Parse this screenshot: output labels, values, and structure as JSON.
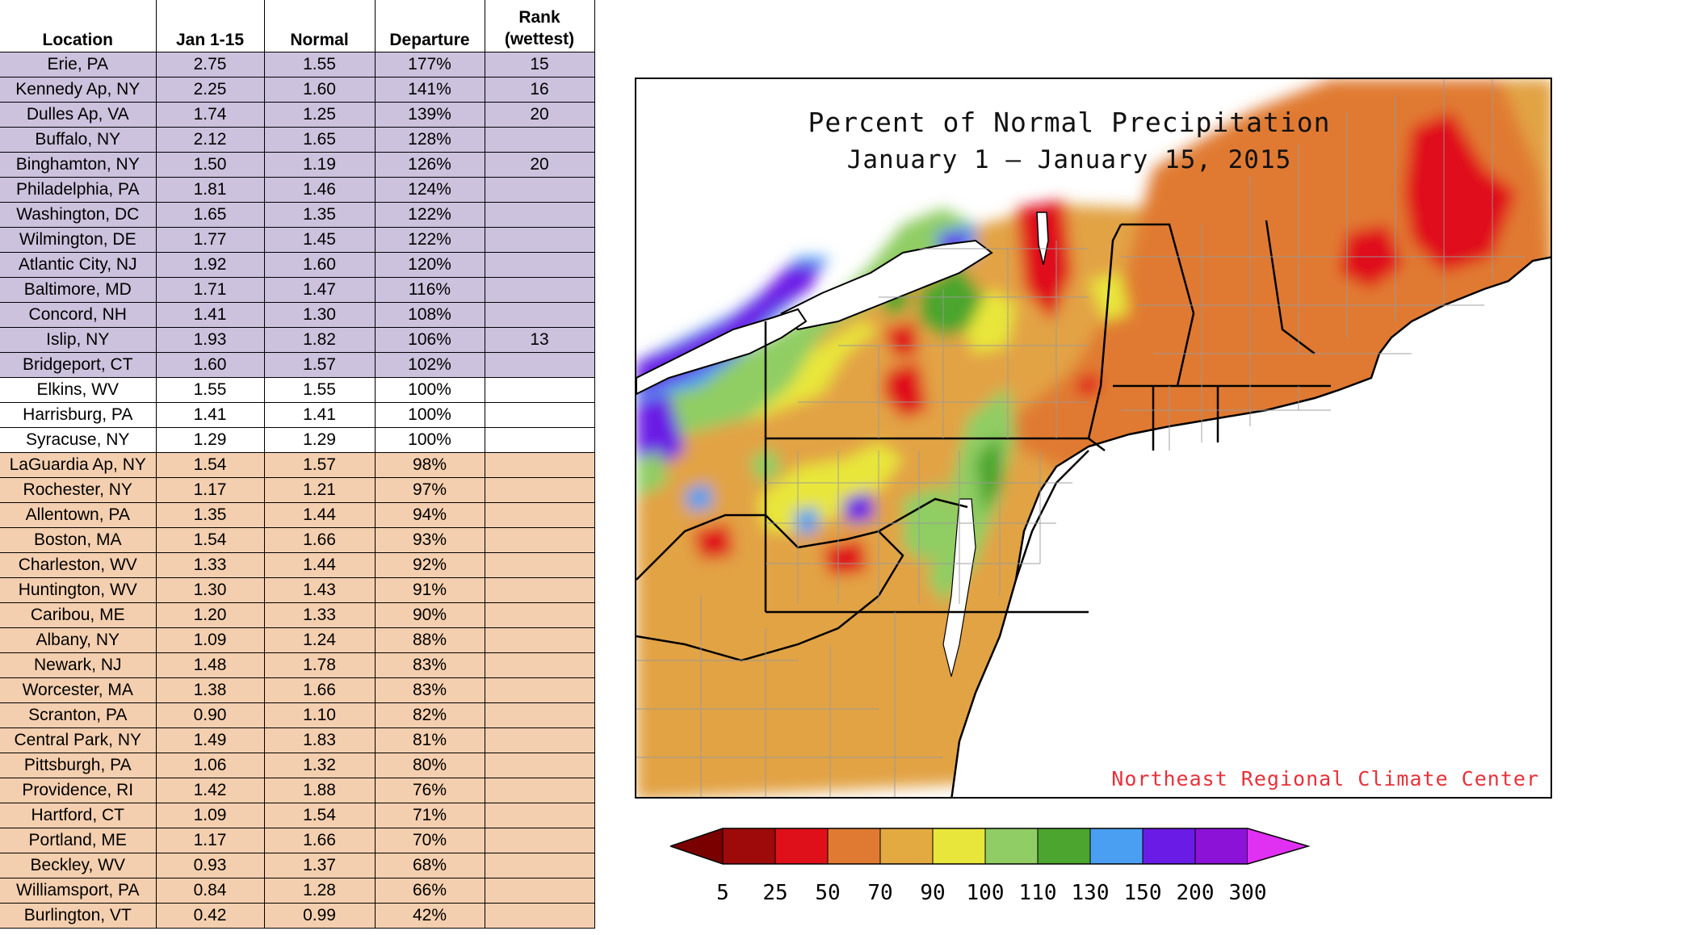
{
  "table": {
    "headers": {
      "location": "Location",
      "jan": "Jan 1-15",
      "normal": "Normal",
      "departure": "Departure",
      "rank_line1": "Rank",
      "rank_line2": "(wettest)"
    },
    "rows": [
      {
        "location": "Erie, PA",
        "jan": "2.75",
        "normal": "1.55",
        "departure": "177%",
        "rank": "15",
        "group": "above"
      },
      {
        "location": "Kennedy Ap, NY",
        "jan": "2.25",
        "normal": "1.60",
        "departure": "141%",
        "rank": "16",
        "group": "above"
      },
      {
        "location": "Dulles Ap, VA",
        "jan": "1.74",
        "normal": "1.25",
        "departure": "139%",
        "rank": "20",
        "group": "above"
      },
      {
        "location": "Buffalo, NY",
        "jan": "2.12",
        "normal": "1.65",
        "departure": "128%",
        "rank": "",
        "group": "above"
      },
      {
        "location": "Binghamton, NY",
        "jan": "1.50",
        "normal": "1.19",
        "departure": "126%",
        "rank": "20",
        "group": "above"
      },
      {
        "location": "Philadelphia, PA",
        "jan": "1.81",
        "normal": "1.46",
        "departure": "124%",
        "rank": "",
        "group": "above"
      },
      {
        "location": "Washington, DC",
        "jan": "1.65",
        "normal": "1.35",
        "departure": "122%",
        "rank": "",
        "group": "above"
      },
      {
        "location": "Wilmington, DE",
        "jan": "1.77",
        "normal": "1.45",
        "departure": "122%",
        "rank": "",
        "group": "above"
      },
      {
        "location": "Atlantic City, NJ",
        "jan": "1.92",
        "normal": "1.60",
        "departure": "120%",
        "rank": "",
        "group": "above"
      },
      {
        "location": "Baltimore, MD",
        "jan": "1.71",
        "normal": "1.47",
        "departure": "116%",
        "rank": "",
        "group": "above"
      },
      {
        "location": "Concord, NH",
        "jan": "1.41",
        "normal": "1.30",
        "departure": "108%",
        "rank": "",
        "group": "above"
      },
      {
        "location": "Islip, NY",
        "jan": "1.93",
        "normal": "1.82",
        "departure": "106%",
        "rank": "13",
        "group": "above"
      },
      {
        "location": "Bridgeport, CT",
        "jan": "1.60",
        "normal": "1.57",
        "departure": "102%",
        "rank": "",
        "group": "above"
      },
      {
        "location": "Elkins, WV",
        "jan": "1.55",
        "normal": "1.55",
        "departure": "100%",
        "rank": "",
        "group": "normal"
      },
      {
        "location": "Harrisburg, PA",
        "jan": "1.41",
        "normal": "1.41",
        "departure": "100%",
        "rank": "",
        "group": "normal"
      },
      {
        "location": "Syracuse, NY",
        "jan": "1.29",
        "normal": "1.29",
        "departure": "100%",
        "rank": "",
        "group": "normal"
      },
      {
        "location": "LaGuardia Ap, NY",
        "jan": "1.54",
        "normal": "1.57",
        "departure": "98%",
        "rank": "",
        "group": "below"
      },
      {
        "location": "Rochester, NY",
        "jan": "1.17",
        "normal": "1.21",
        "departure": "97%",
        "rank": "",
        "group": "below"
      },
      {
        "location": "Allentown, PA",
        "jan": "1.35",
        "normal": "1.44",
        "departure": "94%",
        "rank": "",
        "group": "below"
      },
      {
        "location": "Boston, MA",
        "jan": "1.54",
        "normal": "1.66",
        "departure": "93%",
        "rank": "",
        "group": "below"
      },
      {
        "location": "Charleston, WV",
        "jan": "1.33",
        "normal": "1.44",
        "departure": "92%",
        "rank": "",
        "group": "below"
      },
      {
        "location": "Huntington, WV",
        "jan": "1.30",
        "normal": "1.43",
        "departure": "91%",
        "rank": "",
        "group": "below"
      },
      {
        "location": "Caribou, ME",
        "jan": "1.20",
        "normal": "1.33",
        "departure": "90%",
        "rank": "",
        "group": "below"
      },
      {
        "location": "Albany, NY",
        "jan": "1.09",
        "normal": "1.24",
        "departure": "88%",
        "rank": "",
        "group": "below"
      },
      {
        "location": "Newark, NJ",
        "jan": "1.48",
        "normal": "1.78",
        "departure": "83%",
        "rank": "",
        "group": "below"
      },
      {
        "location": "Worcester, MA",
        "jan": "1.38",
        "normal": "1.66",
        "departure": "83%",
        "rank": "",
        "group": "below"
      },
      {
        "location": "Scranton, PA",
        "jan": "0.90",
        "normal": "1.10",
        "departure": "82%",
        "rank": "",
        "group": "below"
      },
      {
        "location": "Central Park, NY",
        "jan": "1.49",
        "normal": "1.83",
        "departure": "81%",
        "rank": "",
        "group": "below"
      },
      {
        "location": "Pittsburgh, PA",
        "jan": "1.06",
        "normal": "1.32",
        "departure": "80%",
        "rank": "",
        "group": "below"
      },
      {
        "location": "Providence, RI",
        "jan": "1.42",
        "normal": "1.88",
        "departure": "76%",
        "rank": "",
        "group": "below"
      },
      {
        "location": "Hartford, CT",
        "jan": "1.09",
        "normal": "1.54",
        "departure": "71%",
        "rank": "",
        "group": "below"
      },
      {
        "location": "Portland, ME",
        "jan": "1.17",
        "normal": "1.66",
        "departure": "70%",
        "rank": "",
        "group": "below"
      },
      {
        "location": "Beckley, WV",
        "jan": "0.93",
        "normal": "1.37",
        "departure": "68%",
        "rank": "",
        "group": "below"
      },
      {
        "location": "Williamsport, PA",
        "jan": "0.84",
        "normal": "1.28",
        "departure": "66%",
        "rank": "",
        "group": "below"
      },
      {
        "location": "Burlington, VT",
        "jan": "0.42",
        "normal": "0.99",
        "departure": "42%",
        "rank": "",
        "group": "below"
      }
    ]
  },
  "map": {
    "title_line1": "Percent of Normal Precipitation",
    "title_line2": "January 1 – January 15, 2015",
    "credit": "Northeast Regional Climate Center"
  },
  "legend": {
    "ticks": [
      "5",
      "25",
      "50",
      "70",
      "90",
      "100",
      "110",
      "130",
      "150",
      "200",
      "300"
    ],
    "colors": [
      "#9e0a0a",
      "#e0101a",
      "#e07a32",
      "#e3aa42",
      "#e8e63a",
      "#90cd64",
      "#4ca52e",
      "#4a9ff2",
      "#6a1ce6",
      "#8c12d8"
    ],
    "under_color": "#7a0000",
    "over_color": "#e030f2"
  },
  "chart_data": {
    "type": "table",
    "columns": [
      "Location",
      "Jan 1-15",
      "Normal",
      "Departure",
      "Rank (wettest)"
    ],
    "rows": [
      [
        "Erie, PA",
        2.75,
        1.55,
        177,
        15
      ],
      [
        "Kennedy Ap, NY",
        2.25,
        1.6,
        141,
        16
      ],
      [
        "Dulles Ap, VA",
        1.74,
        1.25,
        139,
        20
      ],
      [
        "Buffalo, NY",
        2.12,
        1.65,
        128,
        null
      ],
      [
        "Binghamton, NY",
        1.5,
        1.19,
        126,
        20
      ],
      [
        "Philadelphia, PA",
        1.81,
        1.46,
        124,
        null
      ],
      [
        "Washington, DC",
        1.65,
        1.35,
        122,
        null
      ],
      [
        "Wilmington, DE",
        1.77,
        1.45,
        122,
        null
      ],
      [
        "Atlantic City, NJ",
        1.92,
        1.6,
        120,
        null
      ],
      [
        "Baltimore, MD",
        1.71,
        1.47,
        116,
        null
      ],
      [
        "Concord, NH",
        1.41,
        1.3,
        108,
        null
      ],
      [
        "Islip, NY",
        1.93,
        1.82,
        106,
        13
      ],
      [
        "Bridgeport, CT",
        1.6,
        1.57,
        102,
        null
      ],
      [
        "Elkins, WV",
        1.55,
        1.55,
        100,
        null
      ],
      [
        "Harrisburg, PA",
        1.41,
        1.41,
        100,
        null
      ],
      [
        "Syracuse, NY",
        1.29,
        1.29,
        100,
        null
      ],
      [
        "LaGuardia Ap, NY",
        1.54,
        1.57,
        98,
        null
      ],
      [
        "Rochester, NY",
        1.17,
        1.21,
        97,
        null
      ],
      [
        "Allentown, PA",
        1.35,
        1.44,
        94,
        null
      ],
      [
        "Boston, MA",
        1.54,
        1.66,
        93,
        null
      ],
      [
        "Charleston, WV",
        1.33,
        1.44,
        92,
        null
      ],
      [
        "Huntington, WV",
        1.3,
        1.43,
        91,
        null
      ],
      [
        "Caribou, ME",
        1.2,
        1.33,
        90,
        null
      ],
      [
        "Albany, NY",
        1.09,
        1.24,
        88,
        null
      ],
      [
        "Newark, NJ",
        1.48,
        1.78,
        83,
        null
      ],
      [
        "Worcester, MA",
        1.38,
        1.66,
        83,
        null
      ],
      [
        "Scranton, PA",
        0.9,
        1.1,
        82,
        null
      ],
      [
        "Central Park, NY",
        1.49,
        1.83,
        81,
        null
      ],
      [
        "Pittsburgh, PA",
        1.06,
        1.32,
        80,
        null
      ],
      [
        "Providence, RI",
        1.42,
        1.88,
        76,
        null
      ],
      [
        "Hartford, CT",
        1.09,
        1.54,
        71,
        null
      ],
      [
        "Portland, ME",
        1.17,
        1.66,
        70,
        null
      ],
      [
        "Beckley, WV",
        0.93,
        1.37,
        68,
        null
      ],
      [
        "Williamsport, PA",
        0.84,
        1.28,
        66,
        null
      ],
      [
        "Burlington, VT",
        0.42,
        0.99,
        42,
        null
      ]
    ]
  }
}
